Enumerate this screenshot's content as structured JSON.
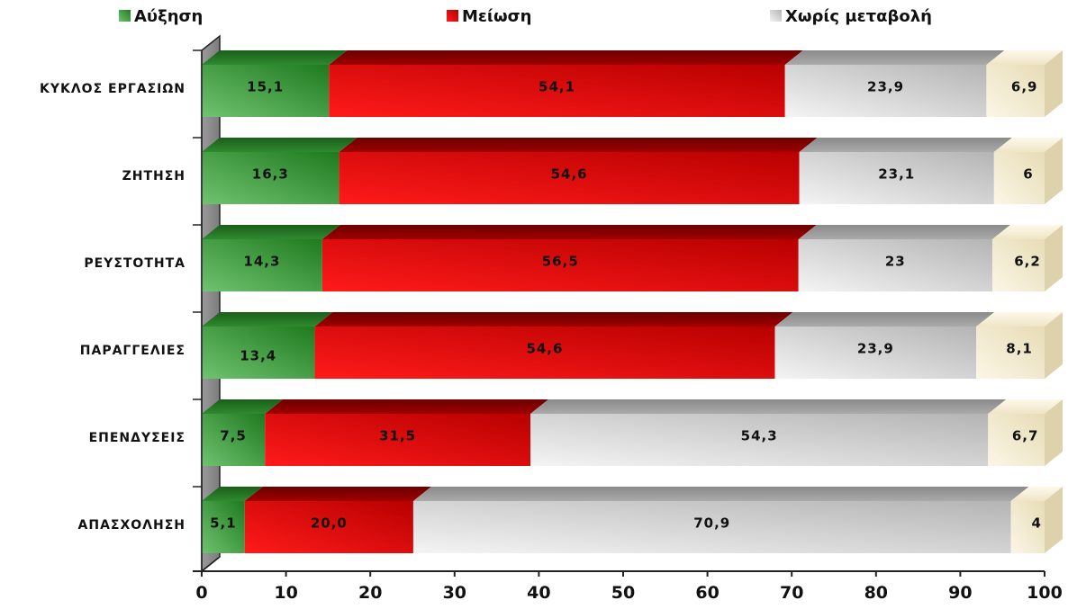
{
  "chart_data": {
    "type": "bar",
    "orientation": "horizontal",
    "stacked": true,
    "categories": [
      "ΚΥΚΛΟΣ ΕΡΓΑΣΙΩΝ",
      "ΖΗΤΗΣΗ",
      "ΡΕΥΣΤΟΤΗΤΑ",
      "ΠΑΡΑΓΓΕΛΙΕΣ",
      "ΕΠΕΝΔΥΣΕΙΣ",
      "ΑΠΑΣΧΟΛΗΣΗ"
    ],
    "series": [
      {
        "name": "Αύξηση",
        "color": "#3a9a3a",
        "values": [
          15.1,
          16.3,
          14.3,
          13.4,
          7.5,
          5.1
        ],
        "labels": [
          "15,1",
          "16,3",
          "14,3",
          "13,4",
          "7,5",
          "5,1"
        ]
      },
      {
        "name": "Μείωση",
        "color": "#e00000",
        "values": [
          54.1,
          54.6,
          56.5,
          54.6,
          31.5,
          20.0
        ],
        "labels": [
          "54,1",
          "54,6",
          "56,5",
          "54,6",
          "31,5",
          "20,0"
        ]
      },
      {
        "name": "Χωρίς μεταβολή",
        "color": "#d8d8d8",
        "values": [
          23.9,
          23.1,
          23,
          23.9,
          54.3,
          70.9
        ],
        "labels": [
          "23,9",
          "23,1",
          "23",
          "23,9",
          "54,3",
          "70,9"
        ]
      },
      {
        "name": "",
        "color": "#f5ecd2",
        "values": [
          6.9,
          6,
          6.2,
          8.1,
          6.7,
          4
        ],
        "labels": [
          "6,9",
          "6",
          "6,2",
          "8,1",
          "6,7",
          "4"
        ]
      }
    ],
    "xlim": [
      0,
      100
    ],
    "xticks": [
      0,
      10,
      20,
      30,
      40,
      50,
      60,
      70,
      80,
      90,
      100
    ],
    "legend_position": "top",
    "grid": false,
    "style": "3d"
  }
}
